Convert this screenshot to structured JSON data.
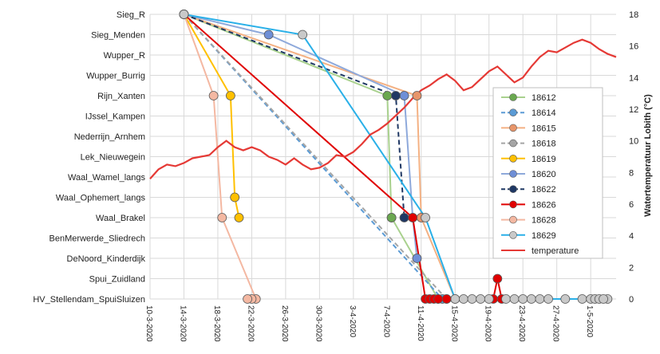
{
  "chart_data": {
    "type": "line",
    "title": "",
    "xlabel": "",
    "ylabel_right": "Watertemperatuur Lobith (°C)",
    "categories": [
      "Sieg_R",
      "Sieg_Menden",
      "Wupper_R",
      "Wupper_Burrig",
      "Rijn_Xanten",
      "IJssel_Kampen",
      "Nederrijn_Arnhem",
      "Lek_Nieuwegein",
      "Waal_Wamel_langs",
      "Waal_Ophemert_langs",
      "Waal_Brakel",
      "BenMerwerde_Sliedrech",
      "DeNoord_Kinderdijk",
      "Spui_Zuidland",
      "HV_Stellendam_SpuiSluizen"
    ],
    "x_ticks": [
      "10-3-2020",
      "14-3-2020",
      "18-3-2020",
      "22-3-2020",
      "26-3-2020",
      "30-3-2020",
      "3-4-2020",
      "7-4-2020",
      "11-4-2020",
      "15-4-2020",
      "19-4-2020",
      "23-4-2020",
      "27-4-2020",
      "1-5-2020"
    ],
    "xlim": [
      "10-3-2020",
      "4-5-2020"
    ],
    "y2_ticks": [
      "0",
      "2",
      "4",
      "6",
      "8",
      "10",
      "12",
      "14",
      "16",
      "18"
    ],
    "y2lim": [
      0,
      18
    ],
    "grid": true,
    "legend_position": "right",
    "series": [
      {
        "name": "18612",
        "color": "#4e9a3f",
        "marker": "#6aa84f",
        "dash": false,
        "line": "#a9d18e",
        "points": [
          [
            "14-3-2020",
            "Sieg_R"
          ],
          [
            "7-4-2020",
            "Rijn_Xanten"
          ],
          [
            "7.5-4-2020",
            "Waal_Brakel"
          ],
          [
            "13-4-2020",
            "HV_Stellendam_SpuiSluizen"
          ]
        ]
      },
      {
        "name": "18614",
        "color": "#5b9bd5",
        "marker": "#5b9bd5",
        "dash": true,
        "line": "#5b9bd5",
        "points": [
          [
            "14-3-2020",
            "Sieg_R"
          ],
          [
            "13.5-4-2020",
            "HV_Stellendam_SpuiSluizen"
          ]
        ]
      },
      {
        "name": "18615",
        "color": "#ed7d31",
        "marker": "#e8956a",
        "dash": false,
        "line": "#f4b183",
        "points": [
          [
            "14-3-2020",
            "Sieg_R"
          ],
          [
            "10.5-4-2020",
            "Rijn_Xanten"
          ],
          [
            "11-4-2020",
            "Waal_Brakel"
          ],
          [
            "15-4-2020",
            "HV_Stellendam_SpuiSluizen"
          ]
        ]
      },
      {
        "name": "18618",
        "color": "#7f7f7f",
        "marker": "#a5a5a5",
        "dash": true,
        "line": "#a5a5a5",
        "points": [
          [
            "14-3-2020",
            "Sieg_R"
          ],
          [
            "14-4-2020",
            "HV_Stellendam_SpuiSluizen"
          ]
        ]
      },
      {
        "name": "18619",
        "color": "#f2b134",
        "marker": "#ffc000",
        "dash": false,
        "line": "#ffc000",
        "points": [
          [
            "14-3-2020",
            "Sieg_R"
          ],
          [
            "19.5-3-2020",
            "Rijn_Xanten"
          ],
          [
            "20-3-2020",
            "Waal_Ophemert_langs"
          ],
          [
            "20.5-3-2020",
            "Waal_Brakel"
          ]
        ]
      },
      {
        "name": "18620",
        "color": "#4472c4",
        "marker": "#6f8fd6",
        "dash": false,
        "line": "#8ea9db",
        "points": [
          [
            "14-3-2020",
            "Sieg_R"
          ],
          [
            "24-3-2020",
            "Sieg_Menden"
          ],
          [
            "9-4-2020",
            "Rijn_Xanten"
          ],
          [
            "10-4-2020",
            "Waal_Brakel"
          ],
          [
            "10.5-4-2020",
            "DeNoord_Kinderdijk"
          ]
        ]
      },
      {
        "name": "18622",
        "color": "#1f3864",
        "marker": "#1f3864",
        "dash": true,
        "line": "#1f3864",
        "points": [
          [
            "14-3-2020",
            "Sieg_R"
          ],
          [
            "8-4-2020",
            "Rijn_Xanten"
          ],
          [
            "9-4-2020",
            "Waal_Brakel"
          ]
        ]
      },
      {
        "name": "18626",
        "color": "#e00000",
        "marker": "#e00000",
        "dash": false,
        "line": "#e00000",
        "points": [
          [
            "14-3-2020",
            "Sieg_R"
          ],
          [
            "10-4-2020",
            "Waal_Brakel"
          ],
          [
            "11.5-4-2020",
            "HV_Stellendam_SpuiSluizen"
          ],
          [
            "19.5-4-2020",
            "HV_Stellendam_SpuiSluizen"
          ],
          [
            "20-4-2020",
            "Spui_Zuidland"
          ],
          [
            "20.5-4-2020",
            "HV_Stellendam_SpuiSluizen"
          ]
        ]
      },
      {
        "name": "18628",
        "color": "#f4b8a2",
        "marker": "#f4b8a2",
        "dash": false,
        "line": "#f4b8a2",
        "points": [
          [
            "14-3-2020",
            "Sieg_R"
          ],
          [
            "17.5-3-2020",
            "Rijn_Xanten"
          ],
          [
            "18.5-3-2020",
            "Waal_Brakel"
          ],
          [
            "22.5-3-2020",
            "HV_Stellendam_SpuiSluizen"
          ]
        ]
      },
      {
        "name": "18629",
        "color": "#2ab0e8",
        "marker": "#c9c9c9",
        "dash": false,
        "line": "#2ab0e8",
        "points": [
          [
            "14-3-2020",
            "Sieg_R"
          ],
          [
            "28-3-2020",
            "Sieg_Menden"
          ],
          [
            "11.5-4-2020",
            "Waal_Brakel"
          ],
          [
            "15-4-2020",
            "HV_Stellendam_SpuiSluizen"
          ],
          [
            "3-5-2020",
            "HV_Stellendam_SpuiSluizen"
          ]
        ]
      }
    ],
    "extra_points": [
      {
        "series": "18612",
        "points": [
          [
            "7.5-4-2020",
            "Waal_Brakel"
          ]
        ]
      },
      {
        "series": "18626",
        "points": [
          [
            "12-4-2020",
            "HV_Stellendam_SpuiSluizen"
          ],
          [
            "12.5-4-2020",
            "HV_Stellendam_SpuiSluizen"
          ],
          [
            "13-4-2020",
            "HV_Stellendam_SpuiSluizen"
          ],
          [
            "14-4-2020",
            "HV_Stellendam_SpuiSluizen"
          ]
        ]
      },
      {
        "series": "18629",
        "points": [
          [
            "16-4-2020",
            "HV_Stellendam_SpuiSluizen"
          ],
          [
            "17-4-2020",
            "HV_Stellendam_SpuiSluizen"
          ],
          [
            "18-4-2020",
            "HV_Stellendam_SpuiSluizen"
          ],
          [
            "19-4-2020",
            "HV_Stellendam_SpuiSluizen"
          ],
          [
            "21-4-2020",
            "HV_Stellendam_SpuiSluizen"
          ],
          [
            "22-4-2020",
            "HV_Stellendam_SpuiSluizen"
          ],
          [
            "23-4-2020",
            "HV_Stellendam_SpuiSluizen"
          ],
          [
            "24-4-2020",
            "HV_Stellendam_SpuiSluizen"
          ],
          [
            "25-4-2020",
            "HV_Stellendam_SpuiSluizen"
          ],
          [
            "26-4-2020",
            "HV_Stellendam_SpuiSluizen"
          ],
          [
            "28-4-2020",
            "HV_Stellendam_SpuiSluizen"
          ],
          [
            "30-4-2020",
            "HV_Stellendam_SpuiSluizen"
          ],
          [
            "1-5-2020",
            "HV_Stellendam_SpuiSluizen"
          ],
          [
            "1.5-5-2020",
            "HV_Stellendam_SpuiSluizen"
          ],
          [
            "2-5-2020",
            "HV_Stellendam_SpuiSluizen"
          ],
          [
            "2.5-5-2020",
            "HV_Stellendam_SpuiSluizen"
          ]
        ]
      },
      {
        "series": "18628",
        "points": [
          [
            "22-3-2020",
            "HV_Stellendam_SpuiSluizen"
          ],
          [
            "21.5-3-2020",
            "HV_Stellendam_SpuiSluizen"
          ]
        ]
      }
    ],
    "temperature": {
      "name": "temperature",
      "color": "#e53935",
      "values": [
        [
          "10-3-2020",
          7.6
        ],
        [
          "11-3-2020",
          8.2
        ],
        [
          "12-3-2020",
          8.5
        ],
        [
          "13-3-2020",
          8.4
        ],
        [
          "14-3-2020",
          8.6
        ],
        [
          "15-3-2020",
          8.9
        ],
        [
          "16-3-2020",
          9.0
        ],
        [
          "17-3-2020",
          9.1
        ],
        [
          "18-3-2020",
          9.6
        ],
        [
          "19-3-2020",
          10.0
        ],
        [
          "20-3-2020",
          9.6
        ],
        [
          "21-3-2020",
          9.4
        ],
        [
          "22-3-2020",
          9.6
        ],
        [
          "23-3-2020",
          9.4
        ],
        [
          "24-3-2020",
          9.0
        ],
        [
          "25-3-2020",
          8.8
        ],
        [
          "26-3-2020",
          8.5
        ],
        [
          "27-3-2020",
          8.9
        ],
        [
          "28-3-2020",
          8.5
        ],
        [
          "29-3-2020",
          8.2
        ],
        [
          "30-3-2020",
          8.3
        ],
        [
          "31-3-2020",
          8.6
        ],
        [
          "1-4-2020",
          9.1
        ],
        [
          "2-4-2020",
          9.0
        ],
        [
          "3-4-2020",
          9.3
        ],
        [
          "4-4-2020",
          9.8
        ],
        [
          "5-4-2020",
          10.4
        ],
        [
          "6-4-2020",
          10.7
        ],
        [
          "7-4-2020",
          11.1
        ],
        [
          "8-4-2020",
          11.6
        ],
        [
          "9-4-2020",
          12.1
        ],
        [
          "10-4-2020",
          12.7
        ],
        [
          "11-4-2020",
          13.2
        ],
        [
          "12-4-2020",
          13.5
        ],
        [
          "13-4-2020",
          13.9
        ],
        [
          "14-4-2020",
          14.2
        ],
        [
          "15-4-2020",
          13.8
        ],
        [
          "16-4-2020",
          13.2
        ],
        [
          "17-4-2020",
          13.4
        ],
        [
          "18-4-2020",
          13.9
        ],
        [
          "19-4-2020",
          14.4
        ],
        [
          "20-4-2020",
          14.7
        ],
        [
          "21-4-2020",
          14.2
        ],
        [
          "22-4-2020",
          13.7
        ],
        [
          "23-4-2020",
          14.0
        ],
        [
          "24-4-2020",
          14.7
        ],
        [
          "25-4-2020",
          15.3
        ],
        [
          "26-4-2020",
          15.7
        ],
        [
          "27-4-2020",
          15.6
        ],
        [
          "28-4-2020",
          15.9
        ],
        [
          "29-4-2020",
          16.2
        ],
        [
          "30-4-2020",
          16.4
        ],
        [
          "1-5-2020",
          16.2
        ],
        [
          "2-5-2020",
          15.8
        ],
        [
          "3-5-2020",
          15.5
        ],
        [
          "4-5-2020",
          15.3
        ]
      ]
    }
  }
}
